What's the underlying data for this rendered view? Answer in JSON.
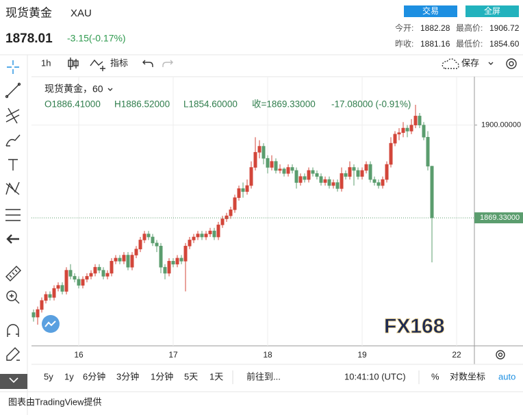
{
  "header": {
    "name": "现货黄金",
    "symbol": "XAU",
    "price": "1878.01",
    "change": "-3.15(-0.17%)",
    "buttons": [
      "交易",
      "全屏"
    ],
    "stats": [
      [
        "今开:",
        "1882.28",
        "最高价:",
        "1906.72"
      ],
      [
        "昨收:",
        "1881.16",
        "最低价:",
        "1854.60"
      ]
    ]
  },
  "toolbar": {
    "interval": "1h",
    "indicators": "指标",
    "save": "保存"
  },
  "bottom_bar": {
    "ranges": [
      "5y",
      "1y",
      "6分钟",
      "3分钟",
      "1分钟",
      "5天",
      "1天"
    ],
    "goto": "前往到...",
    "time": "10:41:10 (UTC)",
    "percent": "%",
    "log": "对数坐标",
    "auto": "auto"
  },
  "footer": "图表由TradingView提供",
  "chart_data": {
    "type": "candlestick",
    "title": "现货黄金，60",
    "watermark": "FX168",
    "ohlc_legend": [
      "O1886.41000",
      "H1886.52000",
      "L1854.60000",
      "收=1869.33000",
      "-17.08000 (-0.91%)"
    ],
    "categories": [
      null,
      null,
      null,
      null,
      null,
      null,
      null,
      null,
      null,
      null,
      null,
      "16",
      null,
      null,
      null,
      null,
      null,
      null,
      null,
      null,
      null,
      null,
      null,
      null,
      null,
      null,
      null,
      null,
      null,
      null,
      null,
      null,
      null,
      null,
      "17",
      null,
      null,
      null,
      null,
      null,
      null,
      null,
      null,
      null,
      null,
      null,
      null,
      null,
      null,
      null,
      null,
      null,
      null,
      null,
      null,
      null,
      null,
      "18",
      null,
      null,
      null,
      null,
      null,
      null,
      null,
      null,
      null,
      null,
      null,
      null,
      null,
      null,
      null,
      null,
      null,
      null,
      null,
      null,
      null,
      null,
      "19",
      null,
      null,
      null,
      null,
      null,
      null,
      null,
      null,
      null,
      null,
      null,
      null,
      null,
      null,
      null,
      null,
      null,
      null,
      null,
      null,
      null,
      null,
      "22",
      null,
      null,
      null,
      null
    ],
    "candles": [
      [
        1838,
        1839,
        1835,
        1836.5
      ],
      [
        1836.5,
        1840,
        1834,
        1839
      ],
      [
        1839,
        1843,
        1838,
        1842
      ],
      [
        1842,
        1845,
        1841,
        1844
      ],
      [
        1844,
        1845,
        1842,
        1843
      ],
      [
        1843,
        1847,
        1842,
        1846
      ],
      [
        1846,
        1848,
        1845,
        1847
      ],
      [
        1847,
        1848,
        1844,
        1845
      ],
      [
        1845,
        1853,
        1844,
        1852
      ],
      [
        1852,
        1854,
        1849,
        1850
      ],
      [
        1850,
        1851,
        1848,
        1849
      ],
      [
        1849,
        1850,
        1846,
        1847
      ],
      [
        1847,
        1850,
        1846,
        1849
      ],
      [
        1849,
        1851,
        1848,
        1850
      ],
      [
        1850,
        1852,
        1849,
        1851
      ],
      [
        1851,
        1854,
        1850,
        1853
      ],
      [
        1853,
        1854,
        1851,
        1852
      ],
      [
        1852,
        1853,
        1849,
        1850
      ],
      [
        1850,
        1852,
        1849,
        1851
      ],
      [
        1851,
        1856,
        1850,
        1855
      ],
      [
        1855,
        1857,
        1854,
        1856
      ],
      [
        1856,
        1857,
        1854,
        1855
      ],
      [
        1855,
        1858,
        1854,
        1857
      ],
      [
        1857,
        1858,
        1852,
        1853
      ],
      [
        1853,
        1858,
        1852,
        1857
      ],
      [
        1857,
        1860,
        1856,
        1859
      ],
      [
        1859,
        1863,
        1858,
        1862
      ],
      [
        1862,
        1865,
        1861,
        1864
      ],
      [
        1864,
        1865,
        1862,
        1863
      ],
      [
        1863,
        1864,
        1860,
        1861
      ],
      [
        1861,
        1862,
        1858,
        1860
      ],
      [
        1860,
        1861,
        1851,
        1853
      ],
      [
        1853,
        1854,
        1849,
        1851
      ],
      [
        1851,
        1856,
        1850,
        1855
      ],
      [
        1855,
        1856,
        1853,
        1854
      ],
      [
        1854,
        1857,
        1853,
        1856
      ],
      [
        1856,
        1857,
        1854,
        1855
      ],
      [
        1855,
        1861,
        1845,
        1860
      ],
      [
        1860,
        1863,
        1859,
        1862
      ],
      [
        1862,
        1864,
        1861,
        1863
      ],
      [
        1863,
        1865,
        1862,
        1864
      ],
      [
        1864,
        1865,
        1862,
        1863
      ],
      [
        1863,
        1865,
        1862,
        1864
      ],
      [
        1864,
        1866,
        1863,
        1865
      ],
      [
        1865,
        1866,
        1862,
        1863
      ],
      [
        1863,
        1868,
        1862,
        1867
      ],
      [
        1867,
        1870,
        1866,
        1869
      ],
      [
        1869,
        1871,
        1868,
        1870
      ],
      [
        1870,
        1873,
        1869,
        1872
      ],
      [
        1872,
        1877,
        1871,
        1876
      ],
      [
        1876,
        1880,
        1875,
        1879
      ],
      [
        1879,
        1881,
        1876,
        1878
      ],
      [
        1878,
        1882,
        1877,
        1880
      ],
      [
        1880,
        1888,
        1879,
        1886
      ],
      [
        1886,
        1896,
        1885,
        1891
      ],
      [
        1891,
        1895,
        1889,
        1893
      ],
      [
        1893,
        1894,
        1887,
        1889
      ],
      [
        1889,
        1890,
        1884,
        1886
      ],
      [
        1886,
        1890,
        1885,
        1888
      ],
      [
        1888,
        1889,
        1884,
        1885
      ],
      [
        1885,
        1887,
        1884,
        1885.5
      ],
      [
        1885.5,
        1886,
        1883,
        1884
      ],
      [
        1884,
        1887,
        1883,
        1886
      ],
      [
        1886,
        1887,
        1884,
        1885
      ],
      [
        1885,
        1886,
        1879,
        1881
      ],
      [
        1881,
        1884,
        1880,
        1883
      ],
      [
        1883,
        1884,
        1881,
        1882
      ],
      [
        1882,
        1886,
        1881,
        1885
      ],
      [
        1885,
        1886,
        1883,
        1884
      ],
      [
        1884,
        1885,
        1882,
        1883
      ],
      [
        1883,
        1884,
        1880,
        1881
      ],
      [
        1881,
        1883,
        1880,
        1882
      ],
      [
        1882,
        1883,
        1879,
        1880
      ],
      [
        1880,
        1882,
        1879,
        1881
      ],
      [
        1881,
        1882,
        1878,
        1879
      ],
      [
        1879,
        1886,
        1878,
        1884
      ],
      [
        1884,
        1885,
        1882,
        1883
      ],
      [
        1883,
        1888,
        1882,
        1886
      ],
      [
        1886,
        1887,
        1880,
        1885
      ],
      [
        1885,
        1886,
        1882,
        1883
      ],
      [
        1883,
        1886,
        1882,
        1885
      ],
      [
        1885,
        1888,
        1884,
        1887
      ],
      [
        1887,
        1888,
        1881,
        1882
      ],
      [
        1882,
        1883,
        1880,
        1881
      ],
      [
        1881,
        1882,
        1879,
        1880
      ],
      [
        1880,
        1883,
        1879,
        1882
      ],
      [
        1882,
        1888,
        1881,
        1887
      ],
      [
        1887,
        1896,
        1886,
        1894
      ],
      [
        1894,
        1898,
        1893,
        1897
      ],
      [
        1897,
        1899,
        1895,
        1897.5
      ],
      [
        1897.5,
        1901,
        1896,
        1899
      ],
      [
        1899,
        1900,
        1896,
        1898
      ],
      [
        1898,
        1902,
        1897,
        1900
      ],
      [
        1900,
        1906.72,
        1899,
        1903
      ],
      [
        1903,
        1904,
        1899,
        1900
      ],
      [
        1900,
        1901,
        1895,
        1896
      ],
      [
        1896,
        1898,
        1885,
        1886.41
      ],
      [
        1886.41,
        1886.52,
        1854.6,
        1869.33
      ],
      null,
      null,
      null,
      null,
      null,
      null,
      null,
      null,
      null,
      null
    ],
    "up_color": "#d3463a",
    "down_color": "#5b9d6e",
    "ylim": [
      1827,
      1916
    ],
    "yticks": [
      {
        "value": 1900,
        "label": "1900.00000"
      }
    ],
    "last_price": {
      "value": 1869.33,
      "label": "1869.33000"
    },
    "grid": true
  }
}
